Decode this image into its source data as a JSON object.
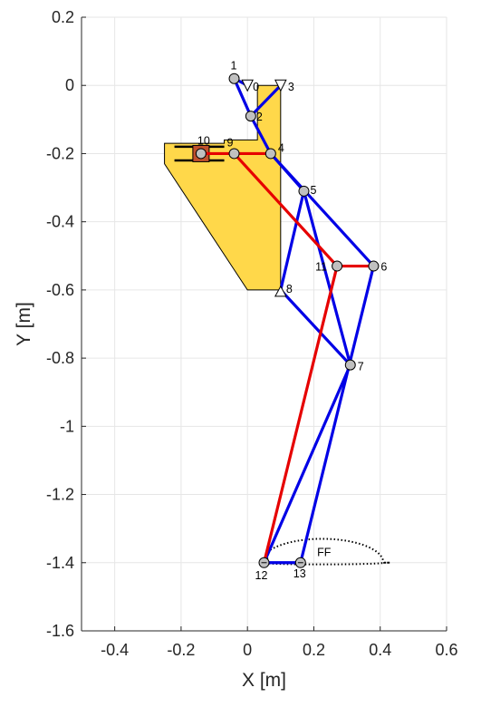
{
  "chart_data": {
    "type": "mechanism-diagram",
    "xlabel": "X [m]",
    "ylabel": "Y [m]",
    "xlim": [
      -0.5,
      0.6
    ],
    "ylim": [
      -1.6,
      0.2
    ],
    "grid": true,
    "xticks": [
      -0.4,
      -0.2,
      0,
      0.2,
      0.4,
      0.6
    ],
    "xtick_labels": [
      "-0.4",
      "-0.2",
      "0",
      "0.2",
      "0.4",
      "0.6"
    ],
    "yticks": [
      0.2,
      0,
      -0.2,
      -0.4,
      -0.6,
      -0.8,
      -1,
      -1.2,
      -1.4,
      -1.6
    ],
    "ytick_labels": [
      "0.2",
      "0",
      "-0.2",
      "-0.4",
      "-0.6",
      "-0.8",
      "-1",
      "-1.2",
      "-1.4",
      "-1.6"
    ],
    "colors": {
      "blue_links": "#0000e6",
      "red_links": "#e60000",
      "body_fill": "#ffd84a",
      "joint_fill": "#c0c0c0",
      "slider_block": "#c0502c",
      "grid": "#e6e6e6"
    },
    "body_polygon": [
      [
        -0.25,
        -0.17
      ],
      [
        -0.07,
        -0.17
      ],
      [
        -0.07,
        -0.16
      ],
      [
        0.03,
        -0.16
      ],
      [
        0.03,
        0.0
      ],
      [
        0.1,
        0.0
      ],
      [
        0.1,
        -0.6
      ],
      [
        0.0,
        -0.6
      ],
      [
        -0.25,
        -0.23
      ]
    ],
    "joints": [
      {
        "id": "1",
        "x": -0.04,
        "y": 0.02
      },
      {
        "id": "2",
        "x": 0.01,
        "y": -0.09
      },
      {
        "id": "4",
        "x": 0.07,
        "y": -0.2
      },
      {
        "id": "5",
        "x": 0.17,
        "y": -0.31
      },
      {
        "id": "6",
        "x": 0.38,
        "y": -0.53
      },
      {
        "id": "7",
        "x": 0.31,
        "y": -0.82
      },
      {
        "id": "9",
        "x": -0.04,
        "y": -0.2
      },
      {
        "id": "10",
        "x": -0.14,
        "y": -0.2
      },
      {
        "id": "11",
        "x": 0.27,
        "y": -0.53
      },
      {
        "id": "12",
        "x": 0.05,
        "y": -1.4
      },
      {
        "id": "13",
        "x": 0.16,
        "y": -1.4
      }
    ],
    "ground_pivots": [
      {
        "id": "0",
        "x": 0.0,
        "y": 0.0
      },
      {
        "id": "3",
        "x": 0.1,
        "y": 0.0
      },
      {
        "id": "8",
        "x": 0.1,
        "y": -0.6
      }
    ],
    "blue_links": [
      [
        "1",
        "0"
      ],
      [
        "1",
        "2"
      ],
      [
        "2",
        "3"
      ],
      [
        "2",
        "4"
      ],
      [
        "4",
        "5"
      ],
      [
        "4",
        "6"
      ],
      [
        "5",
        "8"
      ],
      [
        "5",
        "7"
      ],
      [
        "8",
        "7"
      ],
      [
        "6",
        "13"
      ],
      [
        "7",
        "12"
      ],
      [
        "12",
        "13"
      ]
    ],
    "red_links": [
      [
        "10",
        "9"
      ],
      [
        "9",
        "4"
      ],
      [
        "9",
        "11"
      ],
      [
        "11",
        "6"
      ],
      [
        "11",
        "12"
      ]
    ],
    "slider_rails": [
      {
        "x1": -0.22,
        "x2": -0.07,
        "y": -0.18
      },
      {
        "x1": -0.22,
        "x2": -0.07,
        "y": -0.22
      }
    ],
    "foot_trajectory": {
      "center_x": 0.225,
      "ground_y": -1.4,
      "x_min": 0.06,
      "x_max": 0.43,
      "lift": 0.07,
      "label": "FF",
      "label_x": 0.21,
      "label_y": -1.38
    }
  }
}
